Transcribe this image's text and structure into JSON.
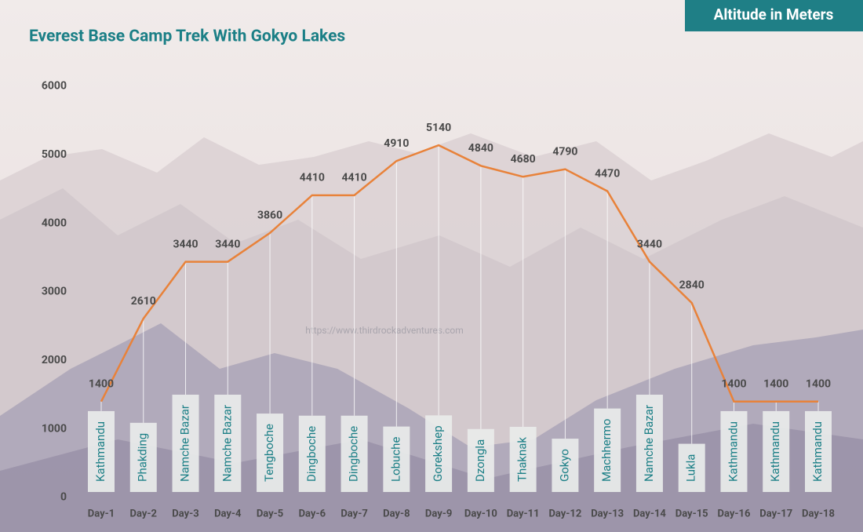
{
  "chart_data": {
    "type": "line",
    "title": "Everest Base Camp Trek With Gokyo Lakes",
    "badge": "Altitude in Meters",
    "watermark": "https://www.thirdrockadventures.com",
    "categories": [
      "Day-1",
      "Day-2",
      "Day-3",
      "Day-4",
      "Day-5",
      "Day-6",
      "Day-7",
      "Day-8",
      "Day-9",
      "Day-10",
      "Day-11",
      "Day-12",
      "Day-13",
      "Day-14",
      "Day-15",
      "Day-16",
      "Day-17",
      "Day-18"
    ],
    "places": [
      "Kathmandu",
      "Phakding",
      "Namche Bazar",
      "Namche Bazar",
      "Tengboche",
      "Dingboche",
      "Dingboche",
      "Lobuche",
      "Gorekshep",
      "Dzongla",
      "Thaknak",
      "Gokyo",
      "Machhermo",
      "Namche Bazar",
      "Lukla",
      "Kathmandu",
      "Kathmandu",
      "Kathmandu"
    ],
    "values": [
      1400,
      2610,
      3440,
      3440,
      3860,
      4410,
      4410,
      4910,
      5140,
      4840,
      4680,
      4790,
      4470,
      3440,
      2840,
      1400,
      1400,
      1400
    ],
    "color": "#e8823a",
    "ylim": [
      0,
      6000
    ],
    "yticks": [
      0,
      1000,
      2000,
      3000,
      4000,
      5000,
      6000
    ],
    "grid": false
  }
}
